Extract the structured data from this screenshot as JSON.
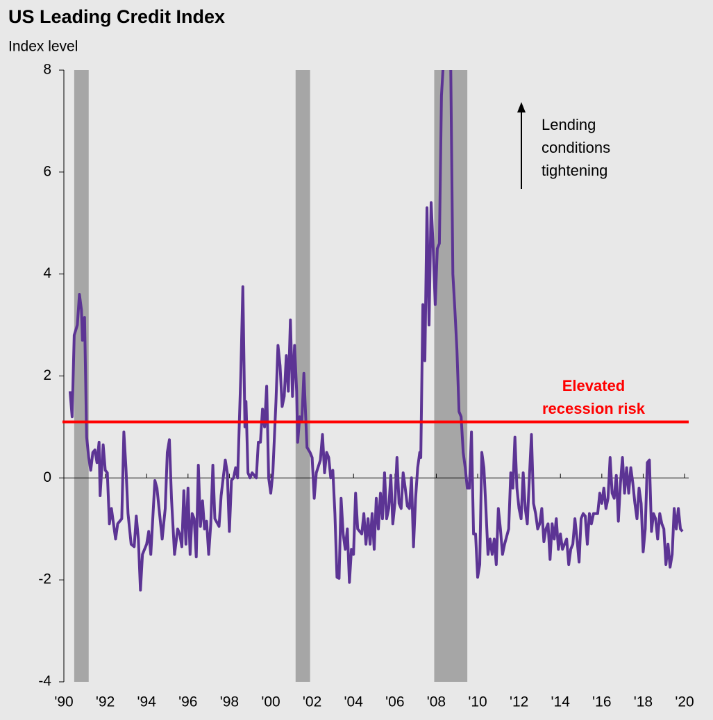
{
  "chart_data": {
    "type": "line",
    "title": "US Leading Credit Index",
    "y_label": "Index level",
    "annotation_lines": [
      "Lending",
      "conditions",
      "tightening"
    ],
    "threshold_label_lines": [
      "Elevated",
      "recession risk"
    ],
    "threshold": 1.1,
    "threshold_color": "#ff0000",
    "recessions": [
      [
        1990.5,
        1991.2
      ],
      [
        2001.2,
        2001.9
      ],
      [
        2007.9,
        2009.5
      ]
    ],
    "recession_color": "#a6a6a6",
    "xlim": [
      1990,
      2020.2
    ],
    "ylim": [
      -4,
      8
    ],
    "yticks": [
      -4,
      -2,
      0,
      2,
      4,
      6,
      8
    ],
    "xticks": [
      {
        "value": 1990,
        "label": "'90"
      },
      {
        "value": 1992,
        "label": "'92"
      },
      {
        "value": 1994,
        "label": "'94"
      },
      {
        "value": 1996,
        "label": "'96"
      },
      {
        "value": 1998,
        "label": "'98"
      },
      {
        "value": 2000,
        "label": "'00"
      },
      {
        "value": 2002,
        "label": "'02"
      },
      {
        "value": 2004,
        "label": "'04"
      },
      {
        "value": 2006,
        "label": "'06"
      },
      {
        "value": 2008,
        "label": "'08"
      },
      {
        "value": 2010,
        "label": "'10"
      },
      {
        "value": 2012,
        "label": "'12"
      },
      {
        "value": 2014,
        "label": "'14"
      },
      {
        "value": 2016,
        "label": "'16"
      },
      {
        "value": 2018,
        "label": "'18"
      },
      {
        "value": 2020,
        "label": "'20"
      }
    ],
    "x": [
      1990.3,
      1990.4,
      1990.5,
      1990.65,
      1990.75,
      1990.85,
      1990.9,
      1991.0,
      1991.1,
      1991.2,
      1991.3,
      1991.4,
      1991.5,
      1991.6,
      1991.7,
      1991.75,
      1991.9,
      1992.0,
      1992.1,
      1992.2,
      1992.3,
      1992.4,
      1992.5,
      1992.6,
      1992.8,
      1992.9,
      1993.0,
      1993.1,
      1993.25,
      1993.4,
      1993.5,
      1993.6,
      1993.7,
      1993.8,
      1994.0,
      1994.1,
      1994.2,
      1994.4,
      1994.5,
      1994.6,
      1994.75,
      1994.9,
      1995.0,
      1995.1,
      1995.2,
      1995.35,
      1995.5,
      1995.6,
      1995.7,
      1995.8,
      1995.9,
      1996.0,
      1996.1,
      1996.2,
      1996.3,
      1996.4,
      1996.5,
      1996.6,
      1996.7,
      1996.8,
      1996.9,
      1997.0,
      1997.1,
      1997.2,
      1997.3,
      1997.5,
      1997.6,
      1997.8,
      1997.9,
      1998.0,
      1998.1,
      1998.2,
      1998.3,
      1998.4,
      1998.55,
      1998.65,
      1998.75,
      1998.8,
      1998.9,
      1999.0,
      1999.1,
      1999.3,
      1999.4,
      1999.5,
      1999.6,
      1999.7,
      1999.8,
      1999.9,
      2000.0,
      2000.1,
      2000.25,
      2000.35,
      2000.45,
      2000.55,
      2000.65,
      2000.75,
      2000.85,
      2000.95,
      2001.05,
      2001.15,
      2001.25,
      2001.3,
      2001.4,
      2001.5,
      2001.6,
      2001.75,
      2001.9,
      2002.0,
      2002.1,
      2002.2,
      2002.4,
      2002.5,
      2002.6,
      2002.7,
      2002.8,
      2002.9,
      2003.0,
      2003.1,
      2003.2,
      2003.3,
      2003.4,
      2003.5,
      2003.6,
      2003.7,
      2003.8,
      2003.9,
      2004.0,
      2004.1,
      2004.2,
      2004.4,
      2004.5,
      2004.6,
      2004.7,
      2004.8,
      2004.9,
      2005.0,
      2005.1,
      2005.2,
      2005.3,
      2005.4,
      2005.5,
      2005.6,
      2005.7,
      2005.8,
      2005.9,
      2006.0,
      2006.1,
      2006.2,
      2006.3,
      2006.4,
      2006.5,
      2006.6,
      2006.7,
      2006.8,
      2006.9,
      2007.0,
      2007.1,
      2007.2,
      2007.25,
      2007.35,
      2007.45,
      2007.55,
      2007.65,
      2007.75,
      2007.85,
      2007.95,
      2008.05,
      2008.15,
      2008.25,
      2008.35,
      2008.5,
      2008.7,
      2008.8,
      2008.9,
      2009.0,
      2009.1,
      2009.2,
      2009.3,
      2009.4,
      2009.5,
      2009.6,
      2009.7,
      2009.8,
      2009.9,
      2010.0,
      2010.1,
      2010.2,
      2010.3,
      2010.4,
      2010.5,
      2010.6,
      2010.7,
      2010.8,
      2010.9,
      2011.0,
      2011.1,
      2011.2,
      2011.3,
      2011.5,
      2011.6,
      2011.7,
      2011.8,
      2011.9,
      2012.0,
      2012.1,
      2012.2,
      2012.3,
      2012.4,
      2012.5,
      2012.6,
      2012.7,
      2012.8,
      2012.9,
      2013.0,
      2013.1,
      2013.2,
      2013.3,
      2013.4,
      2013.5,
      2013.6,
      2013.7,
      2013.8,
      2013.9,
      2014.0,
      2014.1,
      2014.3,
      2014.4,
      2014.5,
      2014.6,
      2014.7,
      2014.8,
      2014.9,
      2015.0,
      2015.1,
      2015.2,
      2015.3,
      2015.4,
      2015.5,
      2015.6,
      2015.8,
      2015.9,
      2016.0,
      2016.1,
      2016.2,
      2016.3,
      2016.4,
      2016.5,
      2016.6,
      2016.7,
      2016.8,
      2016.9,
      2017.0,
      2017.1,
      2017.2,
      2017.3,
      2017.4,
      2017.5,
      2017.6,
      2017.7,
      2017.8,
      2017.9,
      2018.0,
      2018.1,
      2018.2,
      2018.3,
      2018.4,
      2018.5,
      2018.6,
      2018.7,
      2018.8,
      2018.9,
      2019.0,
      2019.1,
      2019.2,
      2019.3,
      2019.4,
      2019.5,
      2019.6,
      2019.7,
      2019.8,
      2019.9
    ],
    "series": [
      {
        "name": "US Leading Credit Index",
        "color": "#5c3494",
        "values": [
          1.7,
          1.2,
          2.8,
          3.0,
          3.6,
          3.3,
          2.7,
          3.15,
          0.8,
          0.4,
          0.15,
          0.5,
          0.55,
          0.3,
          0.7,
          -0.35,
          0.65,
          0.15,
          0.1,
          -0.9,
          -0.6,
          -0.9,
          -1.2,
          -0.9,
          -0.8,
          0.9,
          0.2,
          -0.7,
          -1.3,
          -1.35,
          -0.75,
          -1.2,
          -2.2,
          -1.5,
          -1.3,
          -1.05,
          -1.5,
          -0.05,
          -0.2,
          -0.6,
          -1.2,
          -0.6,
          0.5,
          0.75,
          -0.4,
          -1.5,
          -1.0,
          -1.1,
          -1.35,
          -0.25,
          -1.3,
          -0.2,
          -1.5,
          -0.7,
          -0.8,
          -1.55,
          0.25,
          -0.95,
          -0.45,
          -1.0,
          -0.85,
          -1.5,
          -0.9,
          0.25,
          -0.8,
          -0.95,
          -0.35,
          0.35,
          0.1,
          -1.05,
          -0.05,
          0.0,
          0.2,
          0.0,
          2.0,
          3.75,
          1.0,
          1.5,
          0.1,
          0.0,
          0.1,
          0.0,
          0.7,
          0.7,
          1.35,
          1.0,
          1.8,
          0.0,
          -0.3,
          0.1,
          1.5,
          2.6,
          2.2,
          1.4,
          1.6,
          2.4,
          1.7,
          3.1,
          1.6,
          2.6,
          1.7,
          0.7,
          1.2,
          1.1,
          2.05,
          0.6,
          0.5,
          0.4,
          -0.4,
          0.1,
          0.35,
          0.85,
          0.1,
          0.5,
          0.4,
          0.0,
          0.15,
          -0.7,
          -1.95,
          -1.97,
          -0.4,
          -1.1,
          -1.4,
          -1.0,
          -2.05,
          -1.4,
          -1.5,
          -0.3,
          -1.0,
          -1.1,
          -0.7,
          -1.3,
          -0.8,
          -1.3,
          -0.7,
          -1.4,
          -0.4,
          -1.0,
          -0.3,
          -0.8,
          0.1,
          -0.8,
          -0.6,
          0.05,
          -0.9,
          -0.5,
          0.4,
          -0.5,
          -0.6,
          0.1,
          -0.2,
          -0.55,
          -0.6,
          0.0,
          -1.35,
          -0.4,
          0.2,
          0.5,
          0.4,
          3.4,
          2.3,
          5.3,
          3.0,
          5.4,
          4.5,
          3.4,
          4.5,
          4.6,
          7.5,
          8.2,
          9.0,
          8.0,
          4.0,
          3.3,
          2.5,
          1.3,
          1.2,
          0.5,
          0.2,
          -0.2,
          -0.2,
          0.9,
          -1.1,
          -1.1,
          -1.95,
          -1.7,
          0.5,
          0.2,
          -0.6,
          -1.5,
          -1.2,
          -1.5,
          -1.2,
          -1.7,
          -0.6,
          -1.0,
          -1.5,
          -1.3,
          -1.0,
          0.1,
          -0.2,
          0.8,
          -0.2,
          -0.6,
          -0.8,
          0.1,
          -0.6,
          -0.9,
          0.0,
          0.85,
          -0.5,
          -0.7,
          -1.0,
          -0.9,
          -0.6,
          -1.25,
          -1.0,
          -0.9,
          -1.6,
          -0.9,
          -1.2,
          -0.8,
          -1.4,
          -1.1,
          -1.4,
          -1.2,
          -1.7,
          -1.4,
          -1.3,
          -0.8,
          -1.2,
          -1.65,
          -0.8,
          -0.7,
          -0.75,
          -1.3,
          -0.7,
          -0.9,
          -0.7,
          -0.7,
          -0.3,
          -0.5,
          -0.2,
          -0.6,
          -0.4,
          0.4,
          -0.3,
          -0.4,
          0.05,
          -0.85,
          -0.1,
          0.4,
          -0.3,
          0.2,
          -0.3,
          0.2,
          -0.1,
          -0.5,
          -0.8,
          -0.2,
          -0.5,
          -1.45,
          -1.0,
          0.3,
          0.35,
          -1.05,
          -0.7,
          -0.8,
          -1.2,
          -0.7,
          -0.9,
          -1.0,
          -1.7,
          -1.3,
          -1.75,
          -1.5,
          -0.6,
          -1.0,
          -0.6,
          -1.0,
          -1.05
        ]
      }
    ]
  }
}
